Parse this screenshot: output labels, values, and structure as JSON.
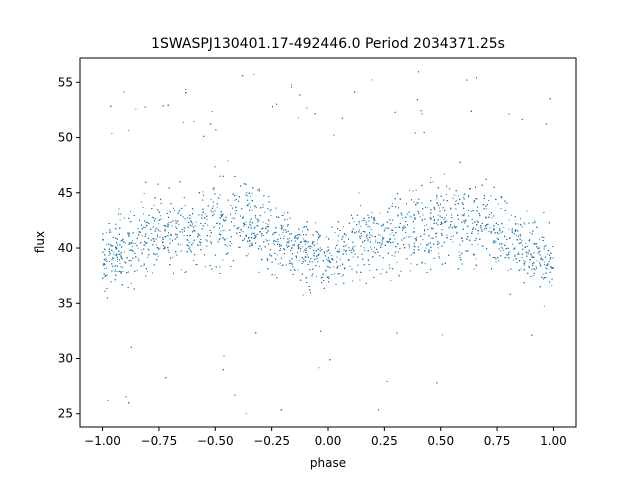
{
  "chart_data": {
    "type": "scatter",
    "title": "1SWASPJ130401.17-492446.0 Period 2034371.25s",
    "xlabel": "phase",
    "ylabel": "flux",
    "xlim": [
      -1.1,
      1.1
    ],
    "ylim": [
      23.8,
      57.2
    ],
    "xticks": [
      -1.0,
      -0.75,
      -0.5,
      -0.25,
      0.0,
      0.25,
      0.5,
      0.75,
      1.0
    ],
    "xtick_labels": [
      "−1.00",
      "−0.75",
      "−0.50",
      "−0.25",
      "0.00",
      "0.25",
      "0.50",
      "0.75",
      "1.00"
    ],
    "yticks": [
      25,
      30,
      35,
      40,
      45,
      50,
      55
    ],
    "ytick_labels": [
      "25",
      "30",
      "35",
      "40",
      "45",
      "50",
      "55"
    ],
    "grid": false,
    "legend": "none",
    "point_color": "#1f77b4",
    "phase_range": [
      -1.0,
      1.0
    ],
    "flux_envelope": {
      "phase": [
        -1.0,
        -0.9,
        -0.8,
        -0.7,
        -0.6,
        -0.5,
        -0.4,
        -0.3,
        -0.2,
        -0.1,
        0.0,
        0.1,
        0.2,
        0.3,
        0.4,
        0.5,
        0.6,
        0.7,
        0.8,
        0.9,
        1.0
      ],
      "median": [
        38.8,
        40.2,
        41.0,
        41.5,
        41.8,
        42.4,
        42.8,
        41.8,
        40.8,
        39.6,
        38.8,
        40.2,
        41.0,
        41.5,
        41.8,
        42.4,
        42.8,
        41.8,
        40.8,
        39.6,
        38.8
      ],
      "spread": [
        3.5,
        4.0,
        4.5,
        4.5,
        4.5,
        5.0,
        5.0,
        4.5,
        4.2,
        3.8,
        3.5,
        4.0,
        4.5,
        4.5,
        4.5,
        5.0,
        5.0,
        4.5,
        4.2,
        3.8,
        3.5
      ]
    },
    "flux_min": 25.0,
    "flux_max": 56.0
  }
}
